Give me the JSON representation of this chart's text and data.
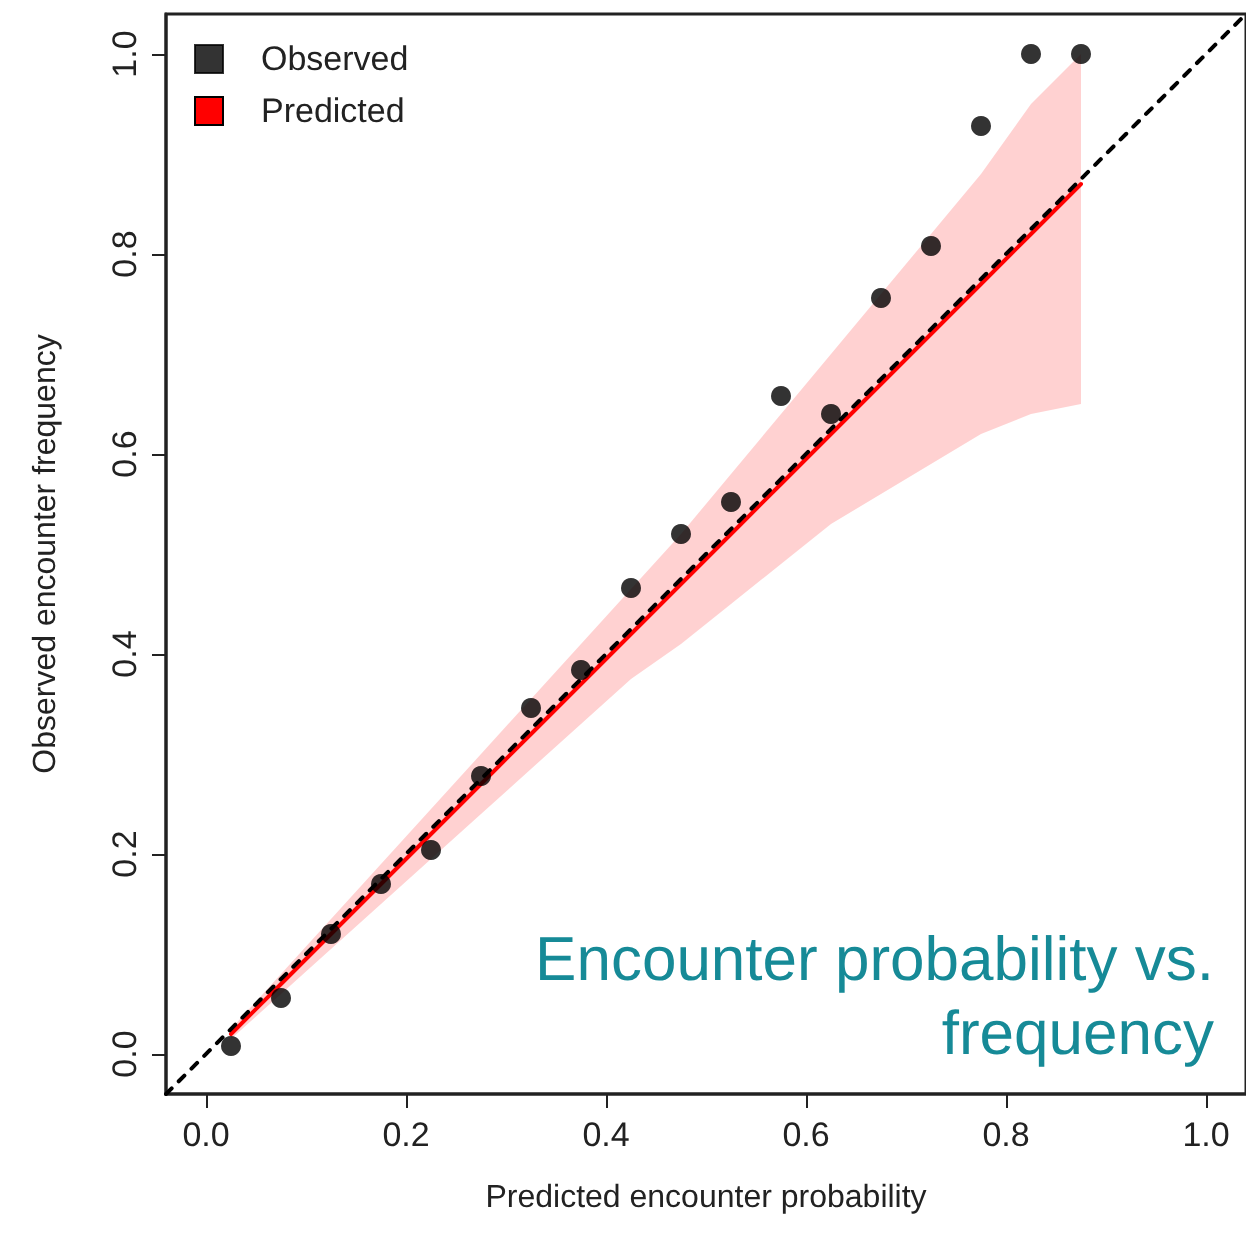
{
  "chart_data": {
    "type": "scatter",
    "xlabel": "Predicted encounter probability",
    "ylabel": "Observed encounter frequency",
    "annotations": [
      "Encounter probability vs. frequency"
    ],
    "xlim": [
      -0.04,
      1.04
    ],
    "ylim": [
      -0.04,
      1.04
    ],
    "xticks": [
      {
        "value": 0,
        "label": "0.0"
      },
      {
        "value": 0.2,
        "label": "0.2"
      },
      {
        "value": 0.4,
        "label": "0.4"
      },
      {
        "value": 0.6,
        "label": "0.6"
      },
      {
        "value": 0.8,
        "label": "0.8"
      },
      {
        "value": 1,
        "label": "1.0"
      }
    ],
    "yticks": [
      {
        "value": 0,
        "label": "0.0"
      },
      {
        "value": 0.2,
        "label": "0.2"
      },
      {
        "value": 0.4,
        "label": "0.4"
      },
      {
        "value": 0.6,
        "label": "0.6"
      },
      {
        "value": 0.8,
        "label": "0.8"
      },
      {
        "value": 1,
        "label": "1.0"
      }
    ],
    "grid": false,
    "legend": "top left",
    "marker": "circle",
    "series": [
      {
        "name": "Observed",
        "color": "#000000",
        "x": [
          0.025,
          0.075,
          0.125,
          0.175,
          0.225,
          0.275,
          0.325,
          0.375,
          0.425,
          0.475,
          0.525,
          0.575,
          0.625,
          0.675,
          0.725,
          0.775,
          0.825,
          0.875
        ],
        "values": [
          0.008,
          0.056,
          0.12,
          0.17,
          0.204,
          0.278,
          0.346,
          0.384,
          0.466,
          0.52,
          0.552,
          0.658,
          0.64,
          0.756,
          0.808,
          0.928,
          1.0,
          1.0
        ]
      },
      {
        "name": "Predicted",
        "type": "line",
        "color": "#ff0000",
        "marker": "none",
        "x": [
          0.025,
          0.075,
          0.125,
          0.175,
          0.225,
          0.275,
          0.325,
          0.375,
          0.425,
          0.475,
          0.525,
          0.575,
          0.625,
          0.675,
          0.725,
          0.775,
          0.825,
          0.875
        ],
        "values": [
          0.02,
          0.07,
          0.12,
          0.17,
          0.22,
          0.27,
          0.32,
          0.37,
          0.42,
          0.47,
          0.52,
          0.57,
          0.62,
          0.67,
          0.72,
          0.77,
          0.82,
          0.87
        ],
        "lower": [
          0.015,
          0.06,
          0.105,
          0.15,
          0.195,
          0.24,
          0.285,
          0.33,
          0.375,
          0.41,
          0.45,
          0.49,
          0.53,
          0.56,
          0.59,
          0.62,
          0.64,
          0.65
        ],
        "upper": [
          0.025,
          0.08,
          0.135,
          0.19,
          0.245,
          0.3,
          0.355,
          0.41,
          0.465,
          0.52,
          0.58,
          0.64,
          0.7,
          0.76,
          0.82,
          0.88,
          0.95,
          1.0
        ]
      },
      {
        "type": "line",
        "color": "#000000",
        "line_style": "dashed",
        "marker": "none",
        "x": [
          -0.04,
          1.04
        ],
        "values": [
          -0.04,
          1.04
        ]
      }
    ]
  }
}
